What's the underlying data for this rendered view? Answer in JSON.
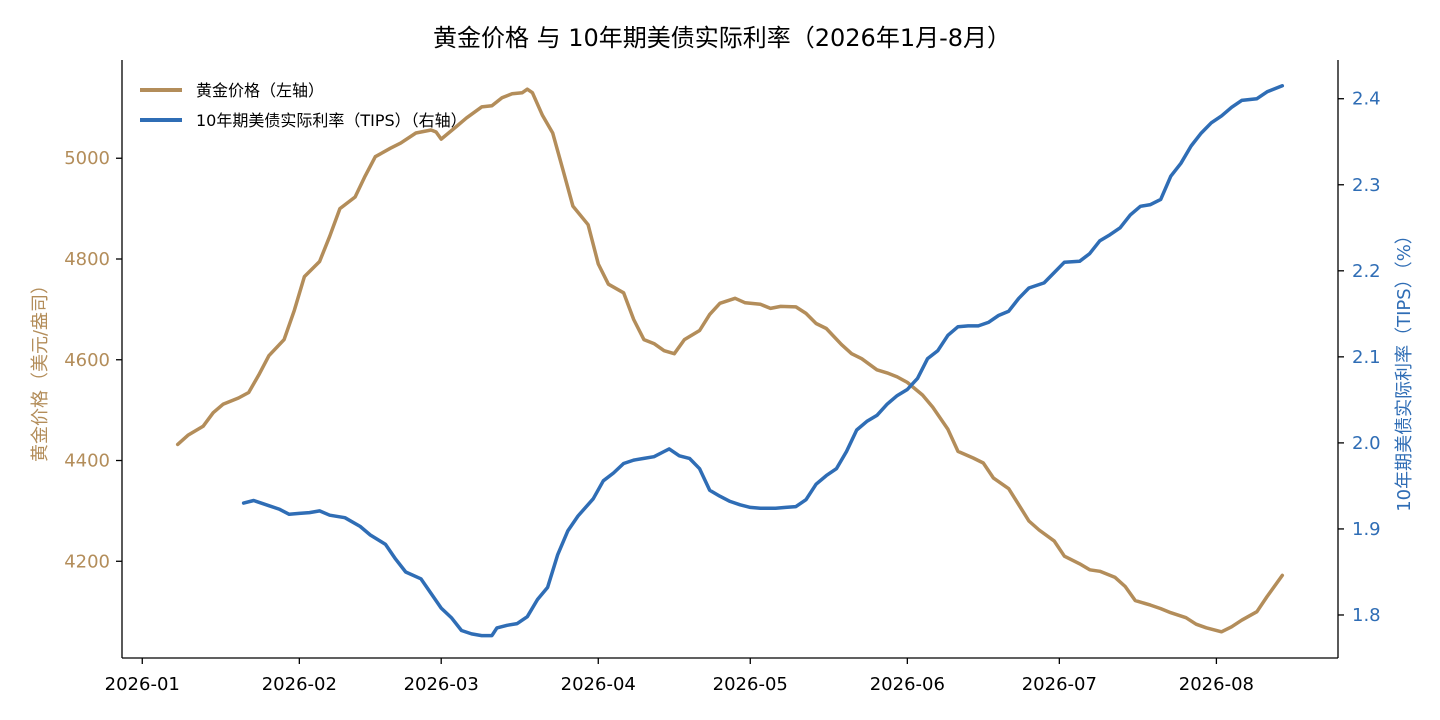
{
  "chart_data": {
    "type": "line",
    "title": "黄金价格 与 10年期美债实际利率（2026年1月-8月）",
    "xlabel": "",
    "ylabel_left": "黄金价格（美元/盎司）",
    "ylabel_right": "10年期美债实际利率（TIPS）（%）",
    "x_tick_labels": [
      "2026-01",
      "2026-02",
      "2026-03",
      "2026-04",
      "2026-05",
      "2026-06",
      "2026-07",
      "2026-08"
    ],
    "y_left_ticks": [
      4200,
      4400,
      4600,
      4800,
      5000
    ],
    "y_right_ticks": [
      1.8,
      1.9,
      2.0,
      2.1,
      2.2,
      2.3,
      2.4
    ],
    "y_left_lim": [
      4008,
      5195
    ],
    "y_right_lim": [
      1.75,
      2.445
    ],
    "x_lim": [
      "2025-12-28",
      "2026-08-25"
    ],
    "legend_position": "top-left",
    "grid": false,
    "colors": {
      "gold": "#B38D5A",
      "tips": "#2F6DB5",
      "axis": "#000000"
    },
    "series": [
      {
        "name": "黄金价格（左轴）",
        "axis": "left",
        "color": "#B38D5A",
        "points": [
          [
            "2026-01-08",
            4432
          ],
          [
            "2026-01-10",
            4450
          ],
          [
            "2026-01-13",
            4468
          ],
          [
            "2026-01-15",
            4495
          ],
          [
            "2026-01-17",
            4512
          ],
          [
            "2026-01-20",
            4524
          ],
          [
            "2026-01-22",
            4535
          ],
          [
            "2026-01-24",
            4570
          ],
          [
            "2026-01-26",
            4608
          ],
          [
            "2026-01-29",
            4640
          ],
          [
            "2026-01-31",
            4698
          ],
          [
            "2026-02-02",
            4765
          ],
          [
            "2026-02-05",
            4795
          ],
          [
            "2026-02-07",
            4845
          ],
          [
            "2026-02-09",
            4900
          ],
          [
            "2026-02-12",
            4923
          ],
          [
            "2026-02-14",
            4965
          ],
          [
            "2026-02-16",
            5003
          ],
          [
            "2026-02-19",
            5020
          ],
          [
            "2026-02-21",
            5030
          ],
          [
            "2026-02-24",
            5050
          ],
          [
            "2026-02-27",
            5056
          ],
          [
            "2026-02-28",
            5052
          ],
          [
            "2026-03-01",
            5038
          ],
          [
            "2026-03-04",
            5063
          ],
          [
            "2026-03-06",
            5080
          ],
          [
            "2026-03-09",
            5102
          ],
          [
            "2026-03-11",
            5104
          ],
          [
            "2026-03-13",
            5120
          ],
          [
            "2026-03-15",
            5128
          ],
          [
            "2026-03-17",
            5130
          ],
          [
            "2026-03-18",
            5137
          ],
          [
            "2026-03-19",
            5130
          ],
          [
            "2026-03-21",
            5085
          ],
          [
            "2026-03-23",
            5050
          ],
          [
            "2026-03-25",
            4978
          ],
          [
            "2026-03-27",
            4905
          ],
          [
            "2026-03-30",
            4868
          ],
          [
            "2026-04-01",
            4790
          ],
          [
            "2026-04-03",
            4750
          ],
          [
            "2026-04-06",
            4733
          ],
          [
            "2026-04-08",
            4680
          ],
          [
            "2026-04-10",
            4640
          ],
          [
            "2026-04-12",
            4632
          ],
          [
            "2026-04-14",
            4618
          ],
          [
            "2026-04-16",
            4612
          ],
          [
            "2026-04-18",
            4640
          ],
          [
            "2026-04-21",
            4658
          ],
          [
            "2026-04-23",
            4690
          ],
          [
            "2026-04-25",
            4712
          ],
          [
            "2026-04-28",
            4722
          ],
          [
            "2026-04-30",
            4713
          ],
          [
            "2026-05-03",
            4710
          ],
          [
            "2026-05-05",
            4702
          ],
          [
            "2026-05-07",
            4706
          ],
          [
            "2026-05-10",
            4705
          ],
          [
            "2026-05-12",
            4692
          ],
          [
            "2026-05-14",
            4672
          ],
          [
            "2026-05-16",
            4662
          ],
          [
            "2026-05-19",
            4630
          ],
          [
            "2026-05-21",
            4612
          ],
          [
            "2026-05-23",
            4602
          ],
          [
            "2026-05-26",
            4580
          ],
          [
            "2026-05-28",
            4574
          ],
          [
            "2026-05-30",
            4566
          ],
          [
            "2026-06-01",
            4555
          ],
          [
            "2026-06-04",
            4530
          ],
          [
            "2026-06-06",
            4506
          ],
          [
            "2026-06-09",
            4462
          ],
          [
            "2026-06-11",
            4418
          ],
          [
            "2026-06-14",
            4405
          ],
          [
            "2026-06-16",
            4395
          ],
          [
            "2026-06-18",
            4365
          ],
          [
            "2026-06-21",
            4344
          ],
          [
            "2026-06-23",
            4312
          ],
          [
            "2026-06-25",
            4280
          ],
          [
            "2026-06-27",
            4262
          ],
          [
            "2026-06-30",
            4240
          ],
          [
            "2026-07-02",
            4210
          ],
          [
            "2026-07-05",
            4195
          ],
          [
            "2026-07-07",
            4183
          ],
          [
            "2026-07-09",
            4180
          ],
          [
            "2026-07-12",
            4168
          ],
          [
            "2026-07-14",
            4150
          ],
          [
            "2026-07-16",
            4122
          ],
          [
            "2026-07-19",
            4113
          ],
          [
            "2026-07-21",
            4106
          ],
          [
            "2026-07-23",
            4098
          ],
          [
            "2026-07-26",
            4088
          ],
          [
            "2026-07-28",
            4075
          ],
          [
            "2026-07-30",
            4068
          ],
          [
            "2026-08-02",
            4060
          ],
          [
            "2026-08-04",
            4070
          ],
          [
            "2026-08-06",
            4083
          ],
          [
            "2026-08-09",
            4100
          ],
          [
            "2026-08-11",
            4130
          ],
          [
            "2026-08-14",
            4172
          ]
        ]
      },
      {
        "name": "10年期美债实际利率（TIPS）（右轴）",
        "axis": "right",
        "color": "#2F6DB5",
        "points": [
          [
            "2026-01-21",
            1.93
          ],
          [
            "2026-01-23",
            1.933
          ],
          [
            "2026-01-26",
            1.927
          ],
          [
            "2026-01-28",
            1.923
          ],
          [
            "2026-01-30",
            1.917
          ],
          [
            "2026-02-01",
            1.918
          ],
          [
            "2026-02-03",
            1.919
          ],
          [
            "2026-02-05",
            1.921
          ],
          [
            "2026-02-07",
            1.916
          ],
          [
            "2026-02-10",
            1.913
          ],
          [
            "2026-02-13",
            1.903
          ],
          [
            "2026-02-15",
            1.893
          ],
          [
            "2026-02-18",
            1.882
          ],
          [
            "2026-02-20",
            1.865
          ],
          [
            "2026-02-22",
            1.85
          ],
          [
            "2026-02-25",
            1.842
          ],
          [
            "2026-02-27",
            1.825
          ],
          [
            "2026-03-01",
            1.808
          ],
          [
            "2026-03-03",
            1.797
          ],
          [
            "2026-03-05",
            1.782
          ],
          [
            "2026-03-07",
            1.778
          ],
          [
            "2026-03-09",
            1.776
          ],
          [
            "2026-03-11",
            1.776
          ],
          [
            "2026-03-12",
            1.785
          ],
          [
            "2026-03-14",
            1.788
          ],
          [
            "2026-03-16",
            1.79
          ],
          [
            "2026-03-18",
            1.798
          ],
          [
            "2026-03-20",
            1.818
          ],
          [
            "2026-03-22",
            1.832
          ],
          [
            "2026-03-24",
            1.87
          ],
          [
            "2026-03-26",
            1.898
          ],
          [
            "2026-03-28",
            1.915
          ],
          [
            "2026-03-31",
            1.935
          ],
          [
            "2026-04-02",
            1.956
          ],
          [
            "2026-04-04",
            1.965
          ],
          [
            "2026-04-06",
            1.976
          ],
          [
            "2026-04-08",
            1.98
          ],
          [
            "2026-04-10",
            1.982
          ],
          [
            "2026-04-12",
            1.984
          ],
          [
            "2026-04-14",
            1.99
          ],
          [
            "2026-04-15",
            1.993
          ],
          [
            "2026-04-17",
            1.985
          ],
          [
            "2026-04-19",
            1.982
          ],
          [
            "2026-04-21",
            1.97
          ],
          [
            "2026-04-23",
            1.945
          ],
          [
            "2026-04-25",
            1.938
          ],
          [
            "2026-04-27",
            1.932
          ],
          [
            "2026-04-29",
            1.928
          ],
          [
            "2026-05-01",
            1.925
          ],
          [
            "2026-05-03",
            1.924
          ],
          [
            "2026-05-06",
            1.924
          ],
          [
            "2026-05-08",
            1.925
          ],
          [
            "2026-05-10",
            1.926
          ],
          [
            "2026-05-12",
            1.934
          ],
          [
            "2026-05-14",
            1.952
          ],
          [
            "2026-05-16",
            1.962
          ],
          [
            "2026-05-18",
            1.97
          ],
          [
            "2026-05-20",
            1.99
          ],
          [
            "2026-05-22",
            2.015
          ],
          [
            "2026-05-24",
            2.025
          ],
          [
            "2026-05-26",
            2.032
          ],
          [
            "2026-05-28",
            2.045
          ],
          [
            "2026-05-30",
            2.055
          ],
          [
            "2026-06-01",
            2.062
          ],
          [
            "2026-06-03",
            2.075
          ],
          [
            "2026-06-05",
            2.098
          ],
          [
            "2026-06-07",
            2.107
          ],
          [
            "2026-06-09",
            2.125
          ],
          [
            "2026-06-11",
            2.135
          ],
          [
            "2026-06-13",
            2.136
          ],
          [
            "2026-06-15",
            2.136
          ],
          [
            "2026-06-17",
            2.14
          ],
          [
            "2026-06-19",
            2.148
          ],
          [
            "2026-06-21",
            2.153
          ],
          [
            "2026-06-23",
            2.168
          ],
          [
            "2026-06-25",
            2.18
          ],
          [
            "2026-06-28",
            2.186
          ],
          [
            "2026-06-30",
            2.198
          ],
          [
            "2026-07-02",
            2.21
          ],
          [
            "2026-07-05",
            2.211
          ],
          [
            "2026-07-07",
            2.22
          ],
          [
            "2026-07-09",
            2.235
          ],
          [
            "2026-07-11",
            2.242
          ],
          [
            "2026-07-13",
            2.25
          ],
          [
            "2026-07-15",
            2.265
          ],
          [
            "2026-07-17",
            2.275
          ],
          [
            "2026-07-19",
            2.277
          ],
          [
            "2026-07-21",
            2.283
          ],
          [
            "2026-07-23",
            2.31
          ],
          [
            "2026-07-25",
            2.325
          ],
          [
            "2026-07-27",
            2.345
          ],
          [
            "2026-07-29",
            2.36
          ],
          [
            "2026-07-31",
            2.372
          ],
          [
            "2026-08-02",
            2.38
          ],
          [
            "2026-08-04",
            2.39
          ],
          [
            "2026-08-06",
            2.398
          ],
          [
            "2026-08-09",
            2.4
          ],
          [
            "2026-08-11",
            2.408
          ],
          [
            "2026-08-14",
            2.415
          ]
        ]
      }
    ]
  }
}
